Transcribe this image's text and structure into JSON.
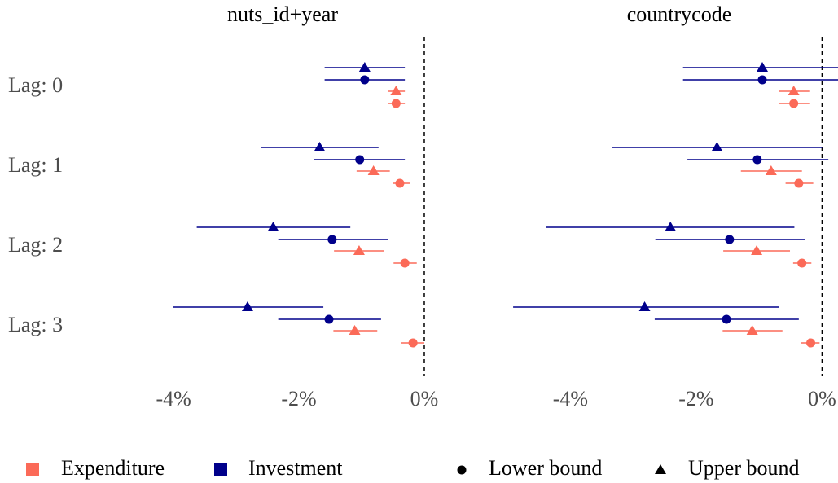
{
  "chart_data": {
    "type": "interval",
    "categories": [
      "Lag: 0",
      "Lag: 1",
      "Lag: 2",
      "Lag: 3"
    ],
    "xlim": [
      -4.95,
      0.26
    ],
    "xticks": [
      {
        "value": -4,
        "label": "-4%"
      },
      {
        "value": -2,
        "label": "-2%"
      },
      {
        "value": 0,
        "label": "0%"
      }
    ],
    "zero_line": true,
    "panels": [
      {
        "title": "nuts_id+year",
        "series": [
          {
            "color": "#00008b",
            "shape": "triangle",
            "values": [
              -0.95,
              -1.67,
              -2.41,
              -2.82
            ],
            "lows": [
              -1.59,
              -2.61,
              -3.63,
              -4.01
            ],
            "highs": [
              -0.31,
              -0.73,
              -1.18,
              -1.61
            ]
          },
          {
            "color": "#00008b",
            "shape": "circle",
            "values": [
              -0.95,
              -1.03,
              -1.47,
              -1.52
            ],
            "lows": [
              -1.59,
              -1.76,
              -2.33,
              -2.33
            ],
            "highs": [
              -0.31,
              -0.31,
              -0.58,
              -0.69
            ]
          },
          {
            "color": "#fb6a58",
            "shape": "triangle",
            "values": [
              -0.45,
              -0.81,
              -1.04,
              -1.11
            ],
            "lows": [
              -0.58,
              -1.08,
              -1.44,
              -1.45
            ],
            "highs": [
              -0.31,
              -0.55,
              -0.64,
              -0.75
            ]
          },
          {
            "color": "#fb6a58",
            "shape": "circle",
            "values": [
              -0.45,
              -0.39,
              -0.31,
              -0.18
            ],
            "lows": [
              -0.58,
              -0.5,
              -0.49,
              -0.37
            ],
            "highs": [
              -0.31,
              -0.23,
              -0.12,
              0.0
            ]
          }
        ]
      },
      {
        "title": "countrycode",
        "series": [
          {
            "color": "#00008b",
            "shape": "triangle",
            "values": [
              -0.95,
              -1.67,
              -2.41,
              -2.82
            ],
            "lows": [
              -2.21,
              -3.34,
              -4.39,
              -4.91
            ],
            "highs": [
              0.26,
              0.0,
              -0.44,
              -0.69
            ]
          },
          {
            "color": "#00008b",
            "shape": "circle",
            "values": [
              -0.95,
              -1.03,
              -1.47,
              -1.52
            ],
            "lows": [
              -2.21,
              -2.14,
              -2.65,
              -2.66
            ],
            "highs": [
              0.26,
              0.1,
              -0.27,
              -0.37
            ]
          },
          {
            "color": "#fb6a58",
            "shape": "triangle",
            "values": [
              -0.45,
              -0.81,
              -1.04,
              -1.11
            ],
            "lows": [
              -0.69,
              -1.29,
              -1.57,
              -1.58
            ],
            "highs": [
              -0.19,
              -0.32,
              -0.51,
              -0.63
            ]
          },
          {
            "color": "#fb6a58",
            "shape": "circle",
            "values": [
              -0.45,
              -0.37,
              -0.32,
              -0.18
            ],
            "lows": [
              -0.69,
              -0.58,
              -0.46,
              -0.33
            ],
            "highs": [
              -0.19,
              -0.14,
              -0.17,
              -0.04
            ]
          }
        ]
      }
    ],
    "legend": {
      "colors": [
        {
          "name": "Expenditure",
          "color": "#fb6a58"
        },
        {
          "name": "Investment",
          "color": "#00008b"
        }
      ],
      "shapes": [
        {
          "name": "Lower bound",
          "shape": "circle"
        },
        {
          "name": "Upper bound",
          "shape": "triangle"
        }
      ]
    }
  }
}
